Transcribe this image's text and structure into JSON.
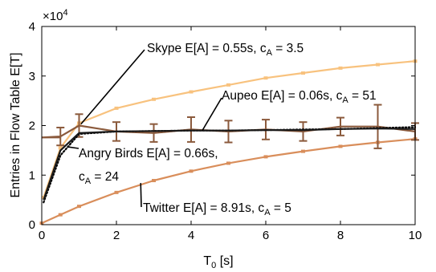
{
  "chart_data": {
    "type": "line",
    "xlabel": "T",
    "xlabel_sub": "0",
    "xlabel_unit": " [s]",
    "ylabel": "Entries in Flow Table E[T]",
    "exponent_base": "×10",
    "exponent_power": "4",
    "xlim": [
      0,
      10
    ],
    "ylim": [
      0,
      40000
    ],
    "x_ticks": [
      0,
      2,
      4,
      6,
      8,
      10
    ],
    "y_ticks": [
      0,
      10000,
      20000,
      30000,
      40000
    ],
    "y_tick_labels": [
      "0",
      "1",
      "2",
      "3",
      "4"
    ],
    "grid": false,
    "series": [
      {
        "key": "skype",
        "color": "#F8C27E",
        "style": "solid",
        "x": [
          0.05,
          0.5,
          1,
          2,
          3,
          4,
          5,
          6,
          7,
          8,
          9,
          10
        ],
        "y": [
          5500,
          15500,
          20500,
          23500,
          25300,
          26800,
          28200,
          29600,
          30600,
          31600,
          32300,
          33000
        ]
      },
      {
        "key": "twitter",
        "color": "#D98E5B",
        "style": "solid",
        "x": [
          0,
          0.5,
          1,
          2,
          3,
          4,
          5,
          6,
          7,
          8,
          9,
          10
        ],
        "y": [
          300,
          2000,
          3700,
          6500,
          8900,
          10800,
          12400,
          13700,
          14800,
          15800,
          16600,
          17300
        ]
      },
      {
        "key": "aupeo",
        "color": "#000000",
        "style": "dotted",
        "x": [
          0.05,
          0.5,
          1,
          2,
          3,
          4,
          5,
          6,
          7,
          8,
          9,
          10
        ],
        "y": [
          4500,
          14000,
          18300,
          18800,
          18900,
          19000,
          19000,
          19100,
          19200,
          19300,
          19500,
          19700
        ]
      },
      {
        "key": "black",
        "color": "#1a1a1a",
        "style": "solid",
        "x": [
          0.05,
          0.5,
          1,
          2,
          3,
          4,
          5,
          6,
          7,
          8,
          9,
          10
        ],
        "y": [
          5000,
          15000,
          18500,
          18800,
          18900,
          19000,
          19000,
          19100,
          19100,
          19300,
          19400,
          19300
        ]
      },
      {
        "key": "angry_birds",
        "color": "#8B5A3C",
        "style": "solid",
        "errorbars": true,
        "x": [
          0,
          0.5,
          1,
          2,
          3,
          4,
          5,
          6,
          7,
          8,
          9,
          10
        ],
        "y": [
          17600,
          17800,
          20000,
          18800,
          18500,
          19200,
          18800,
          19200,
          18800,
          19800,
          19800,
          18800
        ],
        "err": [
          0,
          1800,
          2300,
          1900,
          1800,
          2500,
          2200,
          2000,
          1900,
          1800,
          4400,
          1700
        ]
      }
    ],
    "annotations": [
      {
        "key": "skype",
        "text": "Skype E[A] = 0.55s, c",
        "sub": "A",
        "tail": " = 3.5"
      },
      {
        "key": "aupeo",
        "text": "Aupeo E[A] = 0.06s, c",
        "sub": "A",
        "tail": " = 51"
      },
      {
        "key": "angry1",
        "text": "Angry Birds E[A] = 0.66s,",
        "sub": "",
        "tail": ""
      },
      {
        "key": "angry2",
        "text": "c",
        "sub": "A",
        "tail": " = 24"
      },
      {
        "key": "twitter",
        "text": "Twitter E[A] = 8.91s, c",
        "sub": "A",
        "tail": " = 5"
      }
    ]
  }
}
